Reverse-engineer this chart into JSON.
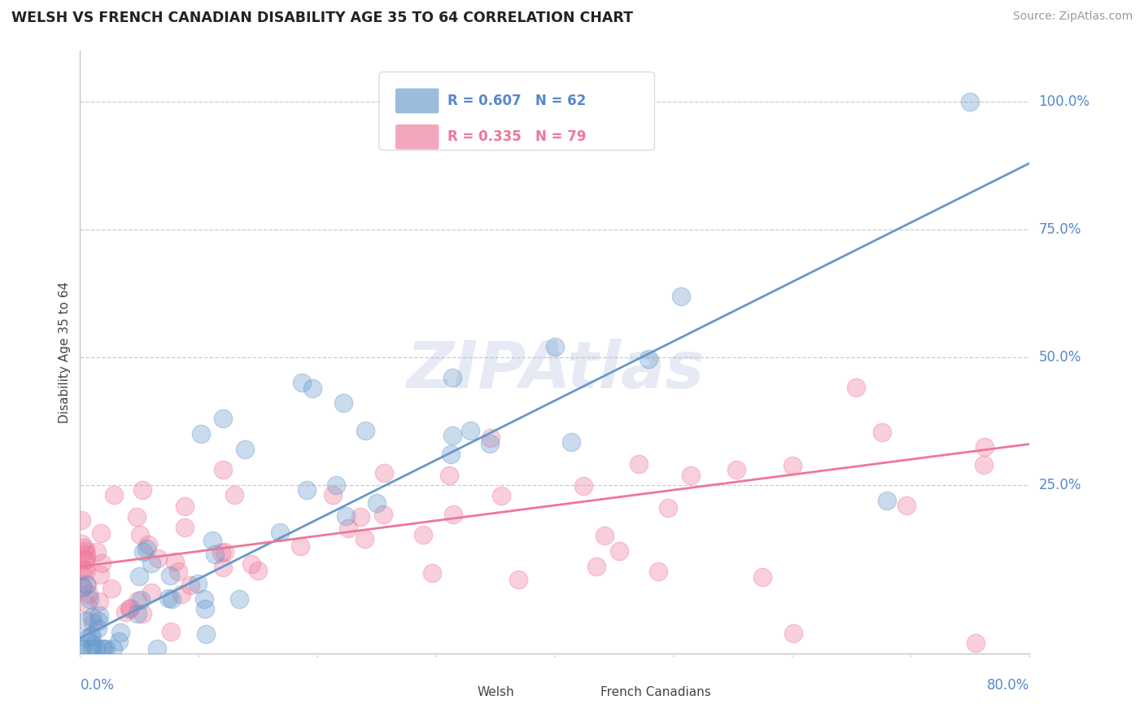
{
  "title": "WELSH VS FRENCH CANADIAN DISABILITY AGE 35 TO 64 CORRELATION CHART",
  "source": "Source: ZipAtlas.com",
  "welsh_color": "#6699CC",
  "fc_color": "#EE7799",
  "watermark": "ZIPAtlas",
  "watermark_color": "#AABBDD",
  "blue_label_color": "#5588CC",
  "welsh_R": 0.607,
  "welsh_N": 62,
  "fc_R": 0.335,
  "fc_N": 79,
  "xlim": [
    0.0,
    0.8
  ],
  "ylim": [
    -0.08,
    1.1
  ],
  "ytick_vals": [
    0.0,
    0.25,
    0.5,
    0.75,
    1.0
  ],
  "ytick_labels": [
    "",
    "25.0%",
    "50.0%",
    "75.0%",
    "100.0%"
  ],
  "welsh_line_x": [
    0.0,
    0.8
  ],
  "welsh_line_y": [
    -0.05,
    0.88
  ],
  "fc_line_x": [
    0.0,
    0.8
  ],
  "fc_line_y": [
    0.09,
    0.33
  ]
}
